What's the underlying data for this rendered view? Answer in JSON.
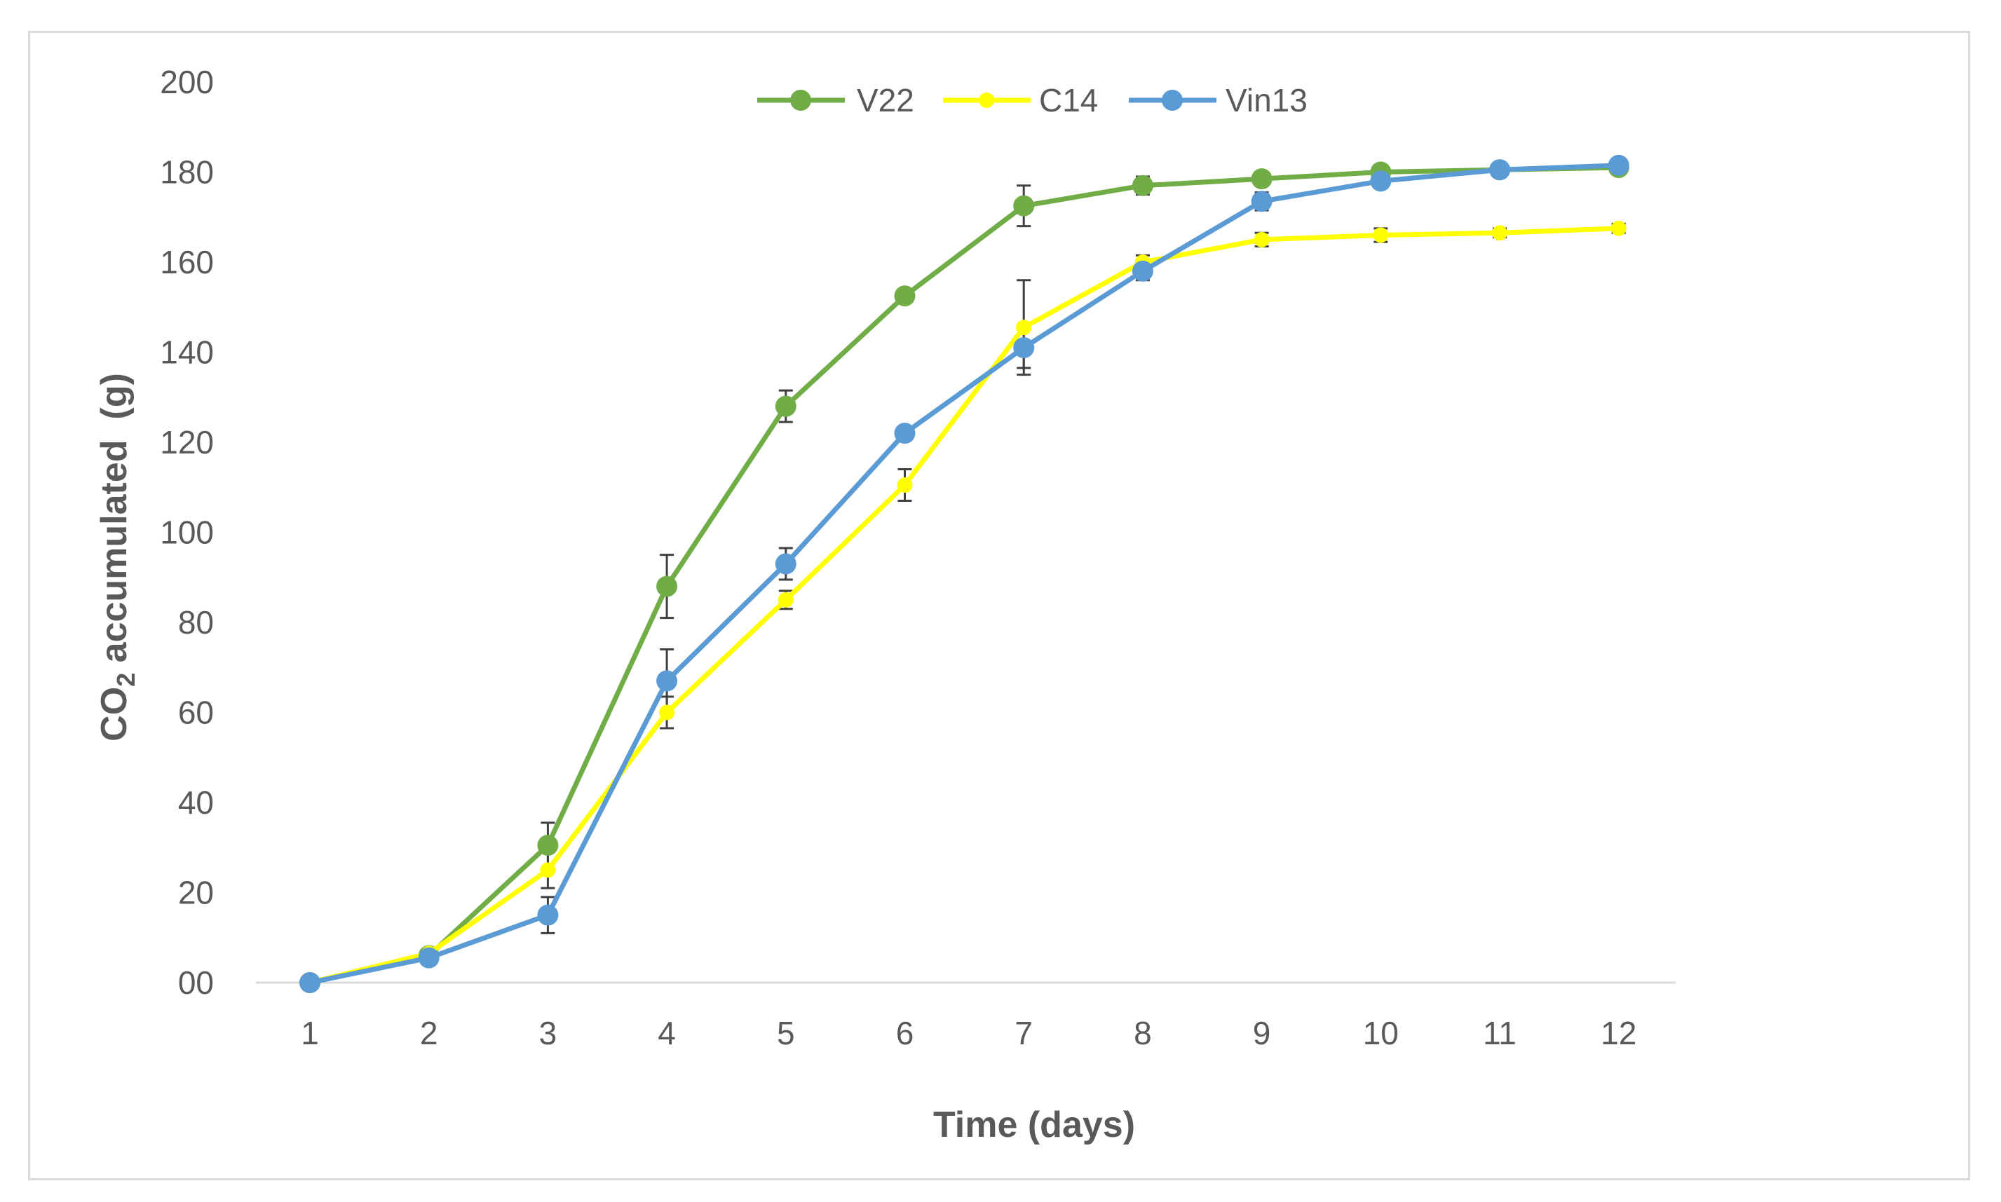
{
  "chart_data": {
    "type": "line",
    "title": "",
    "xlabel": "Time (days)",
    "ylabel_main": "CO",
    "ylabel_sub": "2",
    "ylabel_rest": " accumulated  (g)",
    "x": [
      1,
      2,
      3,
      4,
      5,
      6,
      7,
      8,
      9,
      10,
      11,
      12
    ],
    "x_tick_labels": [
      "1",
      "2",
      "3",
      "4",
      "5",
      "6",
      "7",
      "8",
      "9",
      "10",
      "11",
      "12"
    ],
    "y_tick_values": [
      0,
      20,
      40,
      60,
      80,
      100,
      120,
      140,
      160,
      180,
      200
    ],
    "y_tick_labels": [
      "00",
      "20",
      "40",
      "60",
      "80",
      "100",
      "120",
      "140",
      "160",
      "180",
      "200"
    ],
    "ylim": [
      0,
      200
    ],
    "grid": false,
    "legend_position": "top-center",
    "series": [
      {
        "name": "V22",
        "color": "#70AD47",
        "values": [
          0,
          6,
          30.5,
          88,
          128,
          152.5,
          172.5,
          177,
          178.5,
          180,
          180.5,
          181
        ],
        "errors": [
          0,
          0.5,
          5,
          7,
          3.5,
          1,
          4.5,
          2,
          1.5,
          1,
          0.5,
          0.5
        ]
      },
      {
        "name": "C14",
        "color": "#FFFF00",
        "values": [
          0,
          6.5,
          25,
          60,
          85,
          110.5,
          145.5,
          160,
          165,
          166,
          166.5,
          167.5
        ],
        "errors": [
          0,
          0.5,
          4,
          3.5,
          2,
          3.5,
          10.5,
          1.5,
          1.5,
          1.5,
          1,
          1
        ]
      },
      {
        "name": "Vin13",
        "color": "#5B9BD5",
        "values": [
          0,
          5.5,
          15,
          67,
          93,
          122,
          141,
          158,
          173.5,
          178,
          180.5,
          181.5
        ],
        "errors": [
          0,
          0.5,
          4,
          7,
          3.5,
          1,
          4.5,
          2,
          2,
          1.5,
          1,
          1
        ]
      }
    ]
  }
}
